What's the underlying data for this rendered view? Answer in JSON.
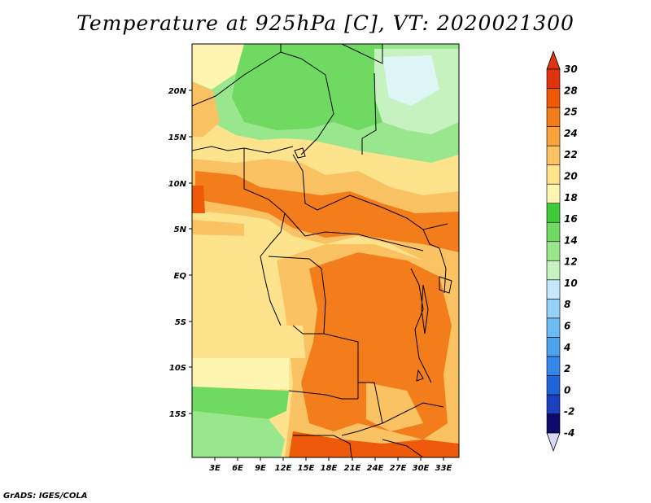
{
  "title": "Temperature at 925hPa [C], VT: 2020021300",
  "credit": "GrADS: IGES/COLA",
  "map": {
    "lon_labels": [
      "3E",
      "6E",
      "9E",
      "12E",
      "15E",
      "18E",
      "21E",
      "24E",
      "27E",
      "30E",
      "33E"
    ],
    "lat_labels": [
      "20N",
      "15N",
      "10N",
      "5N",
      "EQ",
      "5S",
      "10S",
      "15S"
    ]
  },
  "colorbar": {
    "levels": [
      "-4",
      "-2",
      "0",
      "2",
      "4",
      "6",
      "8",
      "10",
      "12",
      "14",
      "16",
      "18",
      "20",
      "22",
      "24",
      "25",
      "28",
      "30"
    ],
    "colors": [
      "#0b0b6e",
      "#1a3fbf",
      "#1f64d9",
      "#3487e8",
      "#4ea3ee",
      "#6ebaf3",
      "#96d2f7",
      "#c4e8fb",
      "#c6f2c0",
      "#99e78c",
      "#6fd962",
      "#3fca3a",
      "#fdf5b0",
      "#fde38c",
      "#fbc264",
      "#f9a33d",
      "#f47d1b",
      "#ee5a0a",
      "#e0330f"
    ]
  }
}
